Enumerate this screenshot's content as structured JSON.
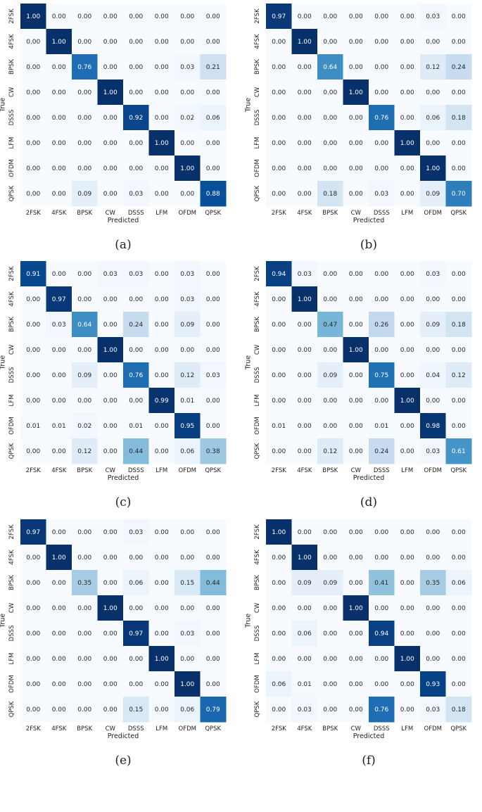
{
  "chart_data": [
    {
      "type": "heatmap",
      "caption": "(a)",
      "xlabel": "Predicted",
      "ylabel": "True",
      "x_categories": [
        "2FSK",
        "4FSK",
        "BPSK",
        "CW",
        "DSSS",
        "LFM",
        "OFDM",
        "QPSK"
      ],
      "y_categories": [
        "2FSK",
        "4FSK",
        "BPSK",
        "CW",
        "DSSS",
        "LFM",
        "OFDM",
        "QPSK"
      ],
      "values": [
        [
          1.0,
          0.0,
          0.0,
          0.0,
          0.0,
          0.0,
          0.0,
          0.0
        ],
        [
          0.0,
          1.0,
          0.0,
          0.0,
          0.0,
          0.0,
          0.0,
          0.0
        ],
        [
          0.0,
          0.0,
          0.76,
          0.0,
          0.0,
          0.0,
          0.03,
          0.21
        ],
        [
          0.0,
          0.0,
          0.0,
          1.0,
          0.0,
          0.0,
          0.0,
          0.0
        ],
        [
          0.0,
          0.0,
          0.0,
          0.0,
          0.92,
          0.0,
          0.02,
          0.06
        ],
        [
          0.0,
          0.0,
          0.0,
          0.0,
          0.0,
          1.0,
          0.0,
          0.0
        ],
        [
          0.0,
          0.0,
          0.0,
          0.0,
          0.0,
          0.0,
          1.0,
          0.0
        ],
        [
          0.0,
          0.0,
          0.09,
          0.0,
          0.03,
          0.0,
          0.0,
          0.88
        ]
      ],
      "colormap": "Blues",
      "vmin": 0,
      "vmax": 1
    },
    {
      "type": "heatmap",
      "caption": "(b)",
      "xlabel": "Predicted",
      "ylabel": "True",
      "x_categories": [
        "2FSK",
        "4FSK",
        "BPSK",
        "CW",
        "DSSS",
        "LFM",
        "OFDM",
        "QPSK"
      ],
      "y_categories": [
        "2FSK",
        "4FSK",
        "BPSK",
        "CW",
        "DSSS",
        "LFM",
        "OFDM",
        "QPSK"
      ],
      "values": [
        [
          0.97,
          0.0,
          0.0,
          0.0,
          0.0,
          0.0,
          0.03,
          0.0
        ],
        [
          0.0,
          1.0,
          0.0,
          0.0,
          0.0,
          0.0,
          0.0,
          0.0
        ],
        [
          0.0,
          0.0,
          0.64,
          0.0,
          0.0,
          0.0,
          0.12,
          0.24
        ],
        [
          0.0,
          0.0,
          0.0,
          1.0,
          0.0,
          0.0,
          0.0,
          0.0
        ],
        [
          0.0,
          0.0,
          0.0,
          0.0,
          0.76,
          0.0,
          0.06,
          0.18
        ],
        [
          0.0,
          0.0,
          0.0,
          0.0,
          0.0,
          1.0,
          0.0,
          0.0
        ],
        [
          0.0,
          0.0,
          0.0,
          0.0,
          0.0,
          0.0,
          1.0,
          0.0
        ],
        [
          0.0,
          0.0,
          0.18,
          0.0,
          0.03,
          0.0,
          0.09,
          0.7
        ]
      ],
      "colormap": "Blues",
      "vmin": 0,
      "vmax": 1
    },
    {
      "type": "heatmap",
      "caption": "(c)",
      "xlabel": "Predicted",
      "ylabel": "True",
      "x_categories": [
        "2FSK",
        "4FSK",
        "BPSK",
        "CW",
        "DSSS",
        "LFM",
        "OFDM",
        "QPSK"
      ],
      "y_categories": [
        "2FSK",
        "4FSK",
        "BPSK",
        "CW",
        "DSSS",
        "LFM",
        "OFDM",
        "QPSK"
      ],
      "values": [
        [
          0.91,
          0.0,
          0.0,
          0.03,
          0.03,
          0.0,
          0.03,
          0.0
        ],
        [
          0.0,
          0.97,
          0.0,
          0.0,
          0.0,
          0.0,
          0.03,
          0.0
        ],
        [
          0.0,
          0.03,
          0.64,
          0.0,
          0.24,
          0.0,
          0.09,
          0.0
        ],
        [
          0.0,
          0.0,
          0.0,
          1.0,
          0.0,
          0.0,
          0.0,
          0.0
        ],
        [
          0.0,
          0.0,
          0.09,
          0.0,
          0.76,
          0.0,
          0.12,
          0.03
        ],
        [
          0.0,
          0.0,
          0.0,
          0.0,
          0.0,
          0.99,
          0.01,
          0.0
        ],
        [
          0.01,
          0.01,
          0.02,
          0.0,
          0.01,
          0.0,
          0.95,
          0.0
        ],
        [
          0.0,
          0.0,
          0.12,
          0.0,
          0.44,
          0.0,
          0.06,
          0.38
        ]
      ],
      "colormap": "Blues",
      "vmin": 0,
      "vmax": 1
    },
    {
      "type": "heatmap",
      "caption": "(d)",
      "xlabel": "Predicted",
      "ylabel": "True",
      "x_categories": [
        "2FSK",
        "4FSK",
        "BPSK",
        "CW",
        "DSSS",
        "LFM",
        "OFDM",
        "QPSK"
      ],
      "y_categories": [
        "2FSK",
        "4FSK",
        "BPSK",
        "CW",
        "DSSS",
        "LFM",
        "OFDM",
        "QPSK"
      ],
      "values": [
        [
          0.94,
          0.03,
          0.0,
          0.0,
          0.0,
          0.0,
          0.03,
          0.0
        ],
        [
          0.0,
          1.0,
          0.0,
          0.0,
          0.0,
          0.0,
          0.0,
          0.0
        ],
        [
          0.0,
          0.0,
          0.47,
          0.0,
          0.26,
          0.0,
          0.09,
          0.18
        ],
        [
          0.0,
          0.0,
          0.0,
          1.0,
          0.0,
          0.0,
          0.0,
          0.0
        ],
        [
          0.0,
          0.0,
          0.09,
          0.0,
          0.75,
          0.0,
          0.04,
          0.12
        ],
        [
          0.0,
          0.0,
          0.0,
          0.0,
          0.0,
          1.0,
          0.0,
          0.0
        ],
        [
          0.01,
          0.0,
          0.0,
          0.0,
          0.01,
          0.0,
          0.98,
          0.0
        ],
        [
          0.0,
          0.0,
          0.12,
          0.0,
          0.24,
          0.0,
          0.03,
          0.61
        ]
      ],
      "colormap": "Blues",
      "vmin": 0,
      "vmax": 1
    },
    {
      "type": "heatmap",
      "caption": "(e)",
      "xlabel": "Predicted",
      "ylabel": "True",
      "x_categories": [
        "2FSK",
        "4FSK",
        "BPSK",
        "CW",
        "DSSS",
        "LFM",
        "OFDM",
        "QPSK"
      ],
      "y_categories": [
        "2FSK",
        "4FSK",
        "BPSK",
        "CW",
        "DSSS",
        "LFM",
        "OFDM",
        "QPSK"
      ],
      "values": [
        [
          0.97,
          0.0,
          0.0,
          0.0,
          0.03,
          0.0,
          0.0,
          0.0
        ],
        [
          0.0,
          1.0,
          0.0,
          0.0,
          0.0,
          0.0,
          0.0,
          0.0
        ],
        [
          0.0,
          0.0,
          0.35,
          0.0,
          0.06,
          0.0,
          0.15,
          0.44
        ],
        [
          0.0,
          0.0,
          0.0,
          1.0,
          0.0,
          0.0,
          0.0,
          0.0
        ],
        [
          0.0,
          0.0,
          0.0,
          0.0,
          0.97,
          0.0,
          0.03,
          0.0
        ],
        [
          0.0,
          0.0,
          0.0,
          0.0,
          0.0,
          1.0,
          0.0,
          0.0
        ],
        [
          0.0,
          0.0,
          0.0,
          0.0,
          0.0,
          0.0,
          1.0,
          0.0
        ],
        [
          0.0,
          0.0,
          0.0,
          0.0,
          0.15,
          0.0,
          0.06,
          0.79
        ]
      ],
      "colormap": "Blues",
      "vmin": 0,
      "vmax": 1
    },
    {
      "type": "heatmap",
      "caption": "(f)",
      "xlabel": "Predicted",
      "ylabel": "True",
      "x_categories": [
        "2FSK",
        "4FSK",
        "BPSK",
        "CW",
        "DSSS",
        "LFM",
        "OFDM",
        "QPSK"
      ],
      "y_categories": [
        "2FSK",
        "4FSK",
        "BPSK",
        "CW",
        "DSSS",
        "LFM",
        "OFDM",
        "QPSK"
      ],
      "values": [
        [
          1.0,
          0.0,
          0.0,
          0.0,
          0.0,
          0.0,
          0.0,
          0.0
        ],
        [
          0.0,
          1.0,
          0.0,
          0.0,
          0.0,
          0.0,
          0.0,
          0.0
        ],
        [
          0.0,
          0.09,
          0.09,
          0.0,
          0.41,
          0.0,
          0.35,
          0.06
        ],
        [
          0.0,
          0.0,
          0.0,
          1.0,
          0.0,
          0.0,
          0.0,
          0.0
        ],
        [
          0.0,
          0.06,
          0.0,
          0.0,
          0.94,
          0.0,
          0.0,
          0.0
        ],
        [
          0.0,
          0.0,
          0.0,
          0.0,
          0.0,
          1.0,
          0.0,
          0.0
        ],
        [
          0.06,
          0.01,
          0.0,
          0.0,
          0.0,
          0.0,
          0.93,
          0.0
        ],
        [
          0.0,
          0.03,
          0.0,
          0.0,
          0.76,
          0.0,
          0.03,
          0.18
        ]
      ],
      "colormap": "Blues",
      "vmin": 0,
      "vmax": 1
    }
  ]
}
